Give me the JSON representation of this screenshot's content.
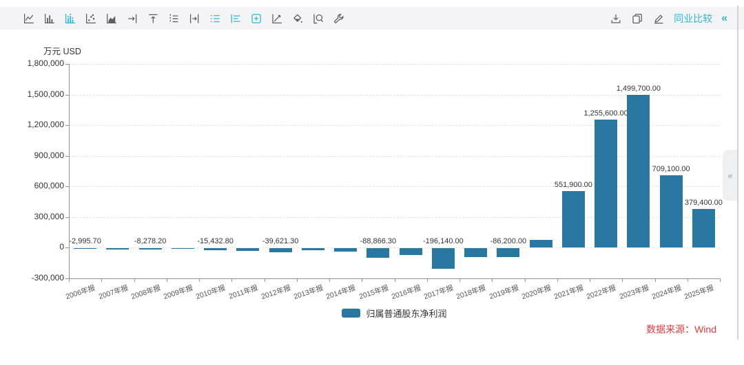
{
  "toolbar": {
    "left_icons": [
      {
        "name": "line-chart",
        "active": false
      },
      {
        "name": "bar-chart",
        "active": false
      },
      {
        "name": "bar-chart-with-labels",
        "active": true
      },
      {
        "name": "scatter-chart",
        "active": false
      },
      {
        "name": "area-chart",
        "active": false
      },
      {
        "name": "align-axis-right",
        "active": false
      },
      {
        "name": "align-axis-top",
        "active": false
      },
      {
        "name": "axis-settings",
        "active": false
      },
      {
        "name": "shift-axis-right",
        "active": false
      },
      {
        "name": "show-legend",
        "active": true
      },
      {
        "name": "show-gridlines",
        "active": true
      },
      {
        "name": "show-data-labels",
        "active": true
      },
      {
        "name": "draw-trendline",
        "active": false
      },
      {
        "name": "fill-style",
        "active": false
      },
      {
        "name": "zoom-region",
        "active": false
      },
      {
        "name": "chart-settings-wrench",
        "active": false
      }
    ],
    "right_icons": [
      {
        "name": "download",
        "active": false
      },
      {
        "name": "copy",
        "active": false
      },
      {
        "name": "edit",
        "active": false
      }
    ],
    "right": {
      "peer_compare_label": "同业比较",
      "collapse_glyph": "«"
    }
  },
  "side_panel": {
    "collapse_glyph": "«"
  },
  "colors": {
    "accent_cyan": "#2cb5d6",
    "bar_blue": "#2878a2",
    "source_red": "#e03c3c"
  },
  "chart_data": {
    "type": "bar",
    "unit": "万元 USD",
    "source": "数据来源：Wind",
    "legend_position": "bottom",
    "grid": true,
    "ylim": [
      -300000,
      1800000
    ],
    "ytick_step": 300000,
    "ytick_labels": [
      "1,800,000",
      "1,500,000",
      "1,200,000",
      "900,000",
      "600,000",
      "300,000",
      "0",
      "-300,000"
    ],
    "categories": [
      "2006年报",
      "2007年报",
      "2008年报",
      "2009年报",
      "2010年报",
      "2011年报",
      "2012年报",
      "2013年报",
      "2014年报",
      "2015年报",
      "2016年报",
      "2017年报",
      "2018年报",
      "2019年报",
      "2020年报",
      "2021年报",
      "2022年报",
      "2023年报",
      "2024年报",
      "2025年报"
    ],
    "series": [
      {
        "name": "归属普通股东净利润",
        "color": "#2878a2",
        "values": [
          -2995.7,
          -9000,
          -8278.2,
          -4000,
          -15432.8,
          -25000,
          -39621.3,
          -18000,
          -32000,
          -88866.3,
          -65000,
          -196140,
          -82000,
          -86200,
          80000,
          551900,
          1255600,
          1499700,
          709100,
          379400
        ],
        "value_labels": [
          "-2,995.70",
          null,
          "-8,278.20",
          null,
          "-15,432.80",
          null,
          "-39,621.30",
          null,
          null,
          "-88,866.30",
          null,
          "-196,140.00",
          null,
          "-86,200.00",
          null,
          "551,900.00",
          "1,255,600.00",
          "1,499,700.00",
          "709,100.00",
          "379,400.00"
        ]
      }
    ]
  }
}
